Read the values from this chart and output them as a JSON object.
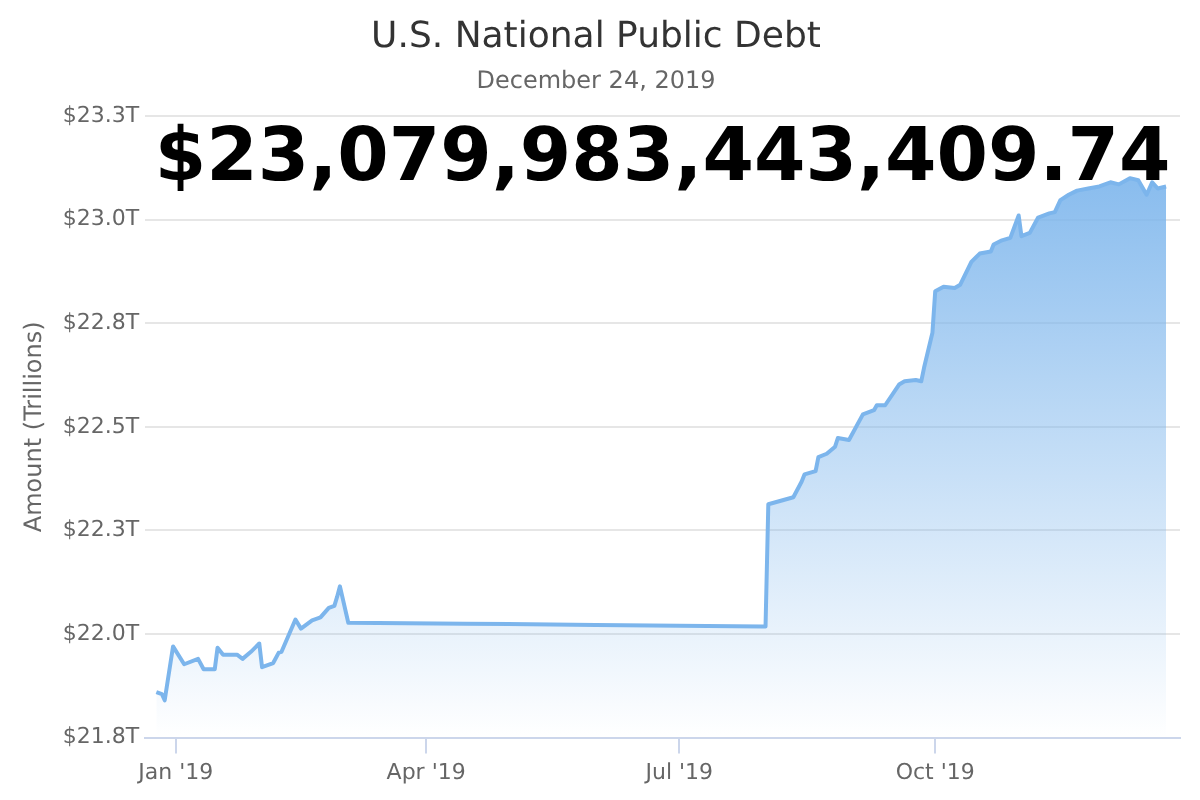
{
  "chart_data": {
    "type": "area",
    "title": "U.S. National Public Debt",
    "subtitle": "December 24, 2019",
    "ylabel": "Amount (Trillions)",
    "annotations": [
      "$23,079,983,443,409.74"
    ],
    "series": [
      {
        "color": "#7cb5ec",
        "x": [
          "2018-12-25",
          "2018-12-27",
          "2018-12-28",
          "2018-12-31",
          "2019-01-04",
          "2019-01-09",
          "2019-01-11",
          "2019-01-15",
          "2019-01-16",
          "2019-01-18",
          "2019-01-23",
          "2019-01-25",
          "2019-01-28",
          "2019-01-31",
          "2019-02-01",
          "2019-02-05",
          "2019-02-07",
          "2019-02-08",
          "2019-02-13",
          "2019-02-15",
          "2019-02-19",
          "2019-02-22",
          "2019-02-25",
          "2019-02-27",
          "2019-02-28",
          "2019-03-01",
          "2019-03-04",
          "2019-04-15",
          "2019-06-01",
          "2019-07-31",
          "2019-08-01",
          "2019-08-02",
          "2019-08-11",
          "2019-08-14",
          "2019-08-15",
          "2019-08-19",
          "2019-08-20",
          "2019-08-23",
          "2019-08-26",
          "2019-08-27",
          "2019-08-31",
          "2019-09-05",
          "2019-09-09",
          "2019-09-10",
          "2019-09-13",
          "2019-09-18",
          "2019-09-20",
          "2019-09-24",
          "2019-09-26",
          "2019-09-27",
          "2019-09-30",
          "2019-10-01",
          "2019-10-04",
          "2019-10-08",
          "2019-10-10",
          "2019-10-14",
          "2019-10-17",
          "2019-10-21",
          "2019-10-22",
          "2019-10-25",
          "2019-10-28",
          "2019-10-31",
          "2019-11-01",
          "2019-11-04",
          "2019-11-07",
          "2019-11-11",
          "2019-11-13",
          "2019-11-15",
          "2019-11-18",
          "2019-11-21",
          "2019-11-25",
          "2019-11-29",
          "2019-12-03",
          "2019-12-06",
          "2019-12-10",
          "2019-12-13",
          "2019-12-16",
          "2019-12-18",
          "2019-12-20",
          "2019-12-23"
        ],
        "values": [
          21.86,
          21.855,
          21.84,
          21.97,
          21.927,
          21.94,
          21.915,
          21.915,
          21.967,
          21.95,
          21.95,
          21.94,
          21.957,
          21.977,
          21.92,
          21.93,
          21.955,
          21.957,
          22.035,
          22.013,
          22.033,
          22.04,
          22.063,
          22.068,
          22.09,
          22.115,
          22.027,
          22.025,
          22.022,
          22.018,
          22.018,
          22.313,
          22.33,
          22.368,
          22.385,
          22.393,
          22.427,
          22.435,
          22.452,
          22.473,
          22.468,
          22.53,
          22.54,
          22.552,
          22.552,
          22.602,
          22.61,
          22.613,
          22.61,
          22.643,
          22.727,
          22.827,
          22.838,
          22.835,
          22.843,
          22.898,
          22.918,
          22.923,
          22.94,
          22.95,
          22.956,
          23.01,
          22.96,
          22.968,
          23.005,
          23.015,
          23.018,
          23.047,
          23.06,
          23.07,
          23.075,
          23.08,
          23.09,
          23.085,
          23.1,
          23.095,
          23.06,
          23.09,
          23.075,
          23.07998
        ]
      }
    ],
    "xlim": [
      "2018-12-21",
      "2019-12-28"
    ],
    "xticks": [
      {
        "value": "2019-01-01",
        "label": "Jan '19"
      },
      {
        "value": "2019-04-01",
        "label": "Apr '19"
      },
      {
        "value": "2019-07-01",
        "label": "Jul '19"
      },
      {
        "value": "2019-10-01",
        "label": "Oct '19"
      }
    ],
    "ylim": [
      21.75,
      23.25
    ],
    "yticks": [
      {
        "value": 21.75,
        "label": "$21.8T"
      },
      {
        "value": 22.0,
        "label": "$22.0T"
      },
      {
        "value": 22.25,
        "label": "$22.3T"
      },
      {
        "value": 22.5,
        "label": "$22.5T"
      },
      {
        "value": 22.75,
        "label": "$22.8T"
      },
      {
        "value": 23.0,
        "label": "$23.0T"
      },
      {
        "value": 23.25,
        "label": "$23.3T"
      }
    ],
    "grid": "y",
    "legend": false,
    "marker": "none",
    "line_style": "solid"
  }
}
